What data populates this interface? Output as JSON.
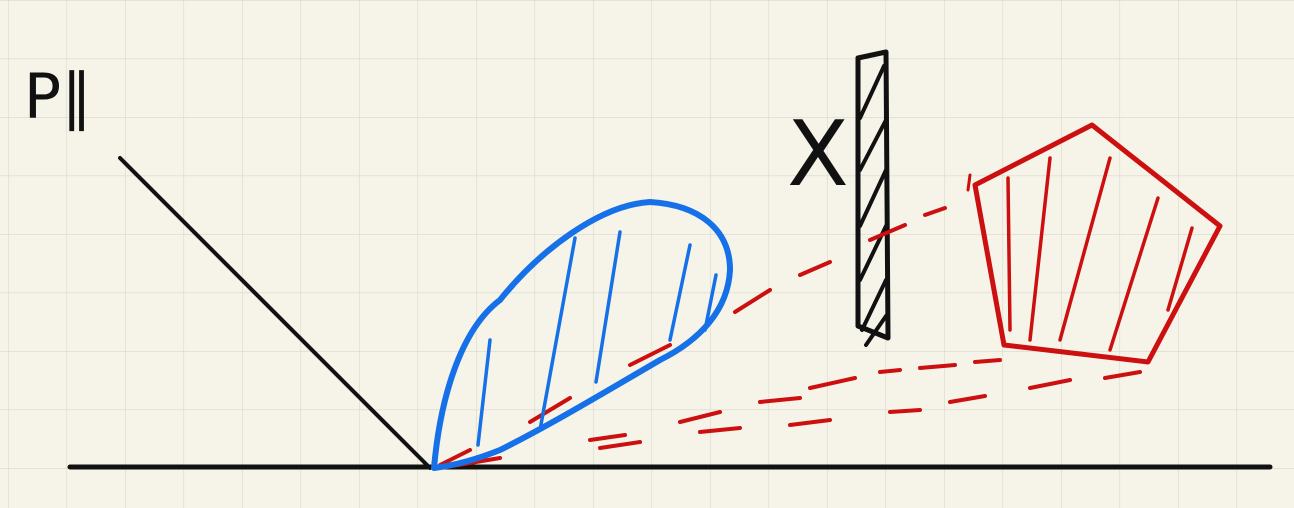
{
  "labels": {
    "light": "P∥",
    "blocker": "X"
  }
}
